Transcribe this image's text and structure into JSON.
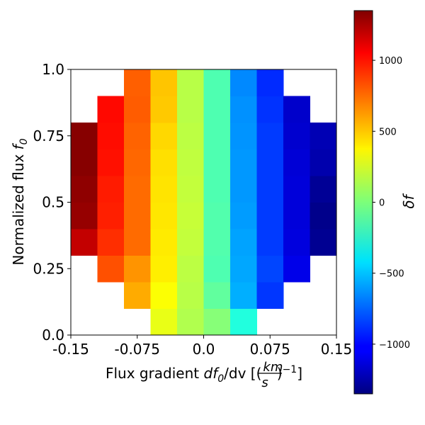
{
  "chart_data": {
    "type": "heatmap",
    "title": "",
    "xlabel_parts": [
      "Flux gradient ",
      "df",
      "0",
      "/dv [(",
      "km",
      "s",
      ")",
      "−1",
      "]"
    ],
    "ylabel_parts": [
      "Normalized flux ",
      "f",
      "0"
    ],
    "colorbar_label_parts": [
      "δ",
      "f"
    ],
    "xlim": [
      -0.15,
      0.15
    ],
    "ylim": [
      0.0,
      1.0
    ],
    "x_tick_values": [
      -0.15,
      -0.075,
      0.0,
      0.075,
      0.15
    ],
    "x_tick_labels": [
      "-0.15",
      "-0.075",
      "0.0",
      "0.075",
      "0.15"
    ],
    "y_tick_values": [
      0.0,
      0.25,
      0.5,
      0.75,
      1.0
    ],
    "y_tick_labels": [
      "0.0",
      "0.25",
      "0.5",
      "0.75",
      "1.0"
    ],
    "colormap": "jet",
    "clim": [
      -1350,
      1350
    ],
    "colorbar_ticks": [
      -1000,
      -500,
      0,
      500,
      1000
    ],
    "colorbar_tick_labels": [
      "−1000",
      "−500",
      "0",
      "500",
      "1000"
    ],
    "x_bin_edges": [
      -0.15,
      -0.12,
      -0.09,
      -0.06,
      -0.03,
      0.0,
      0.03,
      0.06,
      0.09,
      0.12,
      0.15
    ],
    "y_bin_edges": [
      0.0,
      0.1,
      0.2,
      0.3,
      0.4,
      0.5,
      0.6,
      0.7,
      0.8,
      0.9,
      1.0
    ],
    "values": [
      [
        null,
        null,
        null,
        280,
        130,
        20,
        -250,
        null,
        null,
        null
      ],
      [
        null,
        null,
        560,
        330,
        150,
        -80,
        -550,
        -870,
        null,
        null
      ],
      [
        null,
        800,
        620,
        380,
        160,
        -130,
        -570,
        -830,
        -1070,
        null
      ],
      [
        1170,
        890,
        730,
        390,
        180,
        -120,
        -580,
        -860,
        -1100,
        -1300
      ],
      [
        1290,
        930,
        730,
        400,
        190,
        -120,
        -600,
        -860,
        -1110,
        -1320
      ],
      [
        1310,
        940,
        730,
        410,
        180,
        -130,
        -610,
        -860,
        -1110,
        -1290
      ],
      [
        1330,
        970,
        740,
        420,
        170,
        -130,
        -610,
        -860,
        -1120,
        -1230
      ],
      [
        1330,
        980,
        750,
        440,
        160,
        -130,
        -620,
        -860,
        -1140,
        -1210
      ],
      [
        null,
        990,
        770,
        480,
        150,
        -130,
        -630,
        -880,
        -1150,
        null
      ],
      [
        null,
        null,
        760,
        490,
        150,
        -130,
        -650,
        -900,
        null,
        null
      ]
    ]
  }
}
